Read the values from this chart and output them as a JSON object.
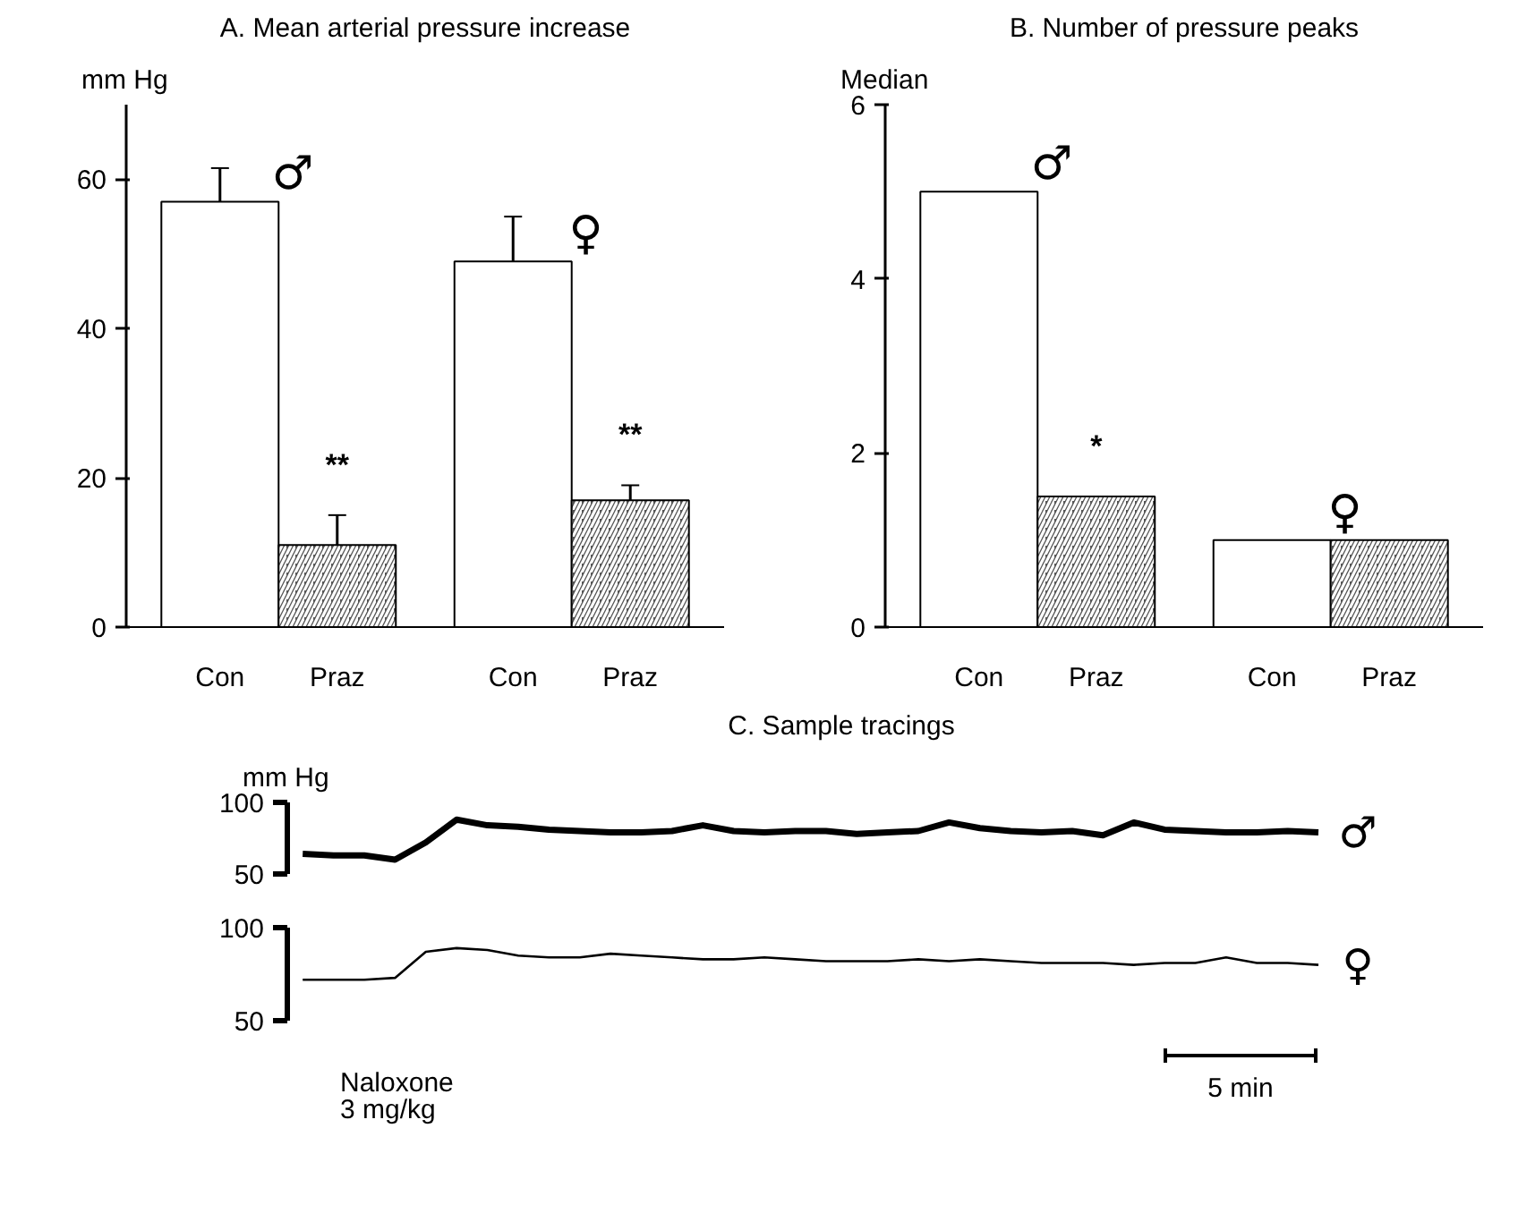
{
  "chart_data": [
    {
      "type": "bar",
      "title": "A. Mean arterial pressure increase",
      "ylabel": "mm Hg",
      "categories": [
        "Con",
        "Praz",
        "Con",
        "Praz"
      ],
      "values": [
        57,
        11,
        49,
        17
      ],
      "errors": [
        4.5,
        4,
        6,
        2
      ],
      "colors": [
        "#ffffff",
        "#555555",
        "#ffffff",
        "#555555"
      ],
      "ylim": [
        0,
        70
      ],
      "yticks": [
        0,
        20,
        40,
        60
      ],
      "grid": false,
      "annotations": [
        "♂",
        "♀",
        "**",
        "**"
      ]
    },
    {
      "type": "bar",
      "title": "B. Number of pressure peaks",
      "ylabel": "Median",
      "categories": [
        "Con",
        "Praz",
        "Con",
        "Praz"
      ],
      "values": [
        5,
        1.5,
        1,
        1
      ],
      "colors": [
        "#ffffff",
        "#555555",
        "#ffffff",
        "#555555"
      ],
      "ylim": [
        0,
        6
      ],
      "yticks": [
        0,
        2,
        4,
        6
      ],
      "grid": false,
      "annotations": [
        "♂",
        "♀",
        "*"
      ]
    },
    {
      "type": "line",
      "title": "C. Sample tracings",
      "ylabel": "mm Hg",
      "categories": [
        null,
        null,
        null,
        null,
        null,
        null,
        null,
        null,
        null,
        null,
        null,
        null,
        null,
        null,
        null,
        null,
        null,
        null,
        null,
        null,
        null,
        null,
        null,
        null,
        null,
        null,
        null,
        null,
        null,
        null,
        null,
        null,
        null,
        null
      ],
      "ylim": [
        50,
        100
      ],
      "yticks": [
        50,
        100
      ],
      "tick_labels": "y",
      "grid": false,
      "series": [
        {
          "color": "#000000",
          "values": [
            64,
            63,
            63,
            60,
            72,
            88,
            84,
            83,
            81,
            80,
            79,
            79,
            80,
            84,
            80,
            79,
            80,
            80,
            78,
            79,
            80,
            86,
            82,
            80,
            79,
            80,
            77,
            86,
            81,
            80,
            79,
            79,
            80,
            79
          ]
        }
      ],
      "annotations": [
        "♂"
      ]
    },
    {
      "type": "line",
      "categories": [
        null,
        null,
        null,
        null,
        null,
        null,
        null,
        null,
        null,
        null,
        null,
        null,
        null,
        null,
        null,
        null,
        null,
        null,
        null,
        null,
        null,
        null,
        null,
        null,
        null,
        null,
        null,
        null,
        null,
        null,
        null,
        null,
        null,
        null
      ],
      "ylim": [
        50,
        100
      ],
      "yticks": [
        50,
        100
      ],
      "tick_labels": "y",
      "grid": false,
      "series": [
        {
          "color": "#000000",
          "values": [
            72,
            72,
            72,
            73,
            87,
            89,
            88,
            85,
            84,
            84,
            86,
            85,
            84,
            83,
            83,
            84,
            83,
            82,
            82,
            82,
            83,
            82,
            83,
            82,
            81,
            81,
            81,
            80,
            81,
            81,
            84,
            81,
            81,
            80
          ]
        }
      ],
      "annotations": [
        "♀",
        "5 min",
        "Naloxone\n3 mg/kg"
      ]
    }
  ]
}
